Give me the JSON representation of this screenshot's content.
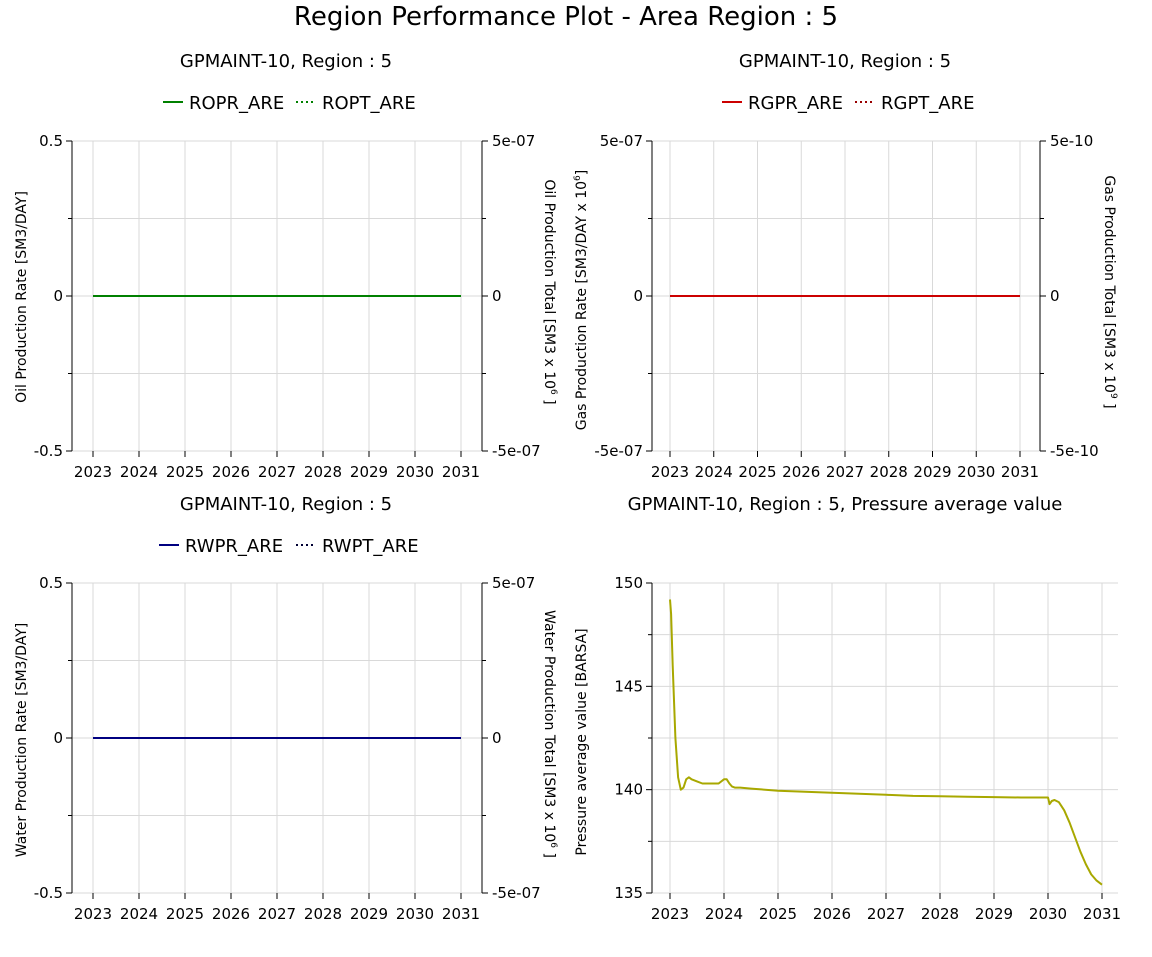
{
  "title": "Region Performance Plot - Area Region : 5",
  "x_tick_labels": [
    "2023",
    "2024",
    "2025",
    "2026",
    "2027",
    "2028",
    "2029",
    "2030",
    "2031"
  ],
  "chart_data": [
    {
      "id": "oil",
      "type": "line",
      "title": "GPMAINT-10, Region : 5",
      "ylabel": "Oil Production Rate [SM3/DAY]",
      "y2label": "Oil Production Total [SM3 x 10",
      "y2label_exp": "6",
      "y2label_end": " ]",
      "ylim": [
        -0.5,
        0.5
      ],
      "y_ticks": [
        "0.5",
        "0",
        "-0.5"
      ],
      "y2lim": [
        -5e-07,
        5e-07
      ],
      "y2_ticks": [
        "5e-07",
        "0",
        "-5e-07"
      ],
      "xlim": [
        2023,
        2031
      ],
      "grid": true,
      "legend_position": "top",
      "series": [
        {
          "name": "ROPR_ARE",
          "color": "#008000",
          "style": "solid",
          "axis": "left",
          "x": [
            2023,
            2031
          ],
          "y": [
            0,
            0
          ]
        },
        {
          "name": "ROPT_ARE",
          "color": "#008000",
          "style": "dotted",
          "axis": "right",
          "x": [
            2023,
            2031
          ],
          "y": [
            0,
            0
          ]
        }
      ]
    },
    {
      "id": "gas",
      "type": "line",
      "title": "GPMAINT-10, Region : 5",
      "ylabel": "Gas Production Rate [SM3/DAY x 10",
      "ylabel_exp": "6",
      "ylabel_end": "]",
      "y2label": "Gas Production Total [SM3 x 10",
      "y2label_exp": "9",
      "y2label_end": " ]",
      "ylim": [
        -5e-07,
        5e-07
      ],
      "y_ticks": [
        "5e-07",
        "0",
        "-5e-07"
      ],
      "y2lim": [
        -5e-10,
        5e-10
      ],
      "y2_ticks": [
        "5e-10",
        "0",
        "-5e-10"
      ],
      "xlim": [
        2023,
        2031
      ],
      "grid": true,
      "legend_position": "top",
      "series": [
        {
          "name": "RGPR_ARE",
          "color": "#cc0000",
          "style": "solid",
          "axis": "left",
          "x": [
            2023,
            2031
          ],
          "y": [
            0,
            0
          ]
        },
        {
          "name": "RGPT_ARE",
          "color": "#990000",
          "style": "dotted",
          "axis": "right",
          "x": [
            2023,
            2031
          ],
          "y": [
            0,
            0
          ]
        }
      ]
    },
    {
      "id": "water",
      "type": "line",
      "title": "GPMAINT-10, Region : 5",
      "ylabel": "Water Production Rate [SM3/DAY]",
      "y2label": "Water Production Total [SM3 x 10",
      "y2label_exp": "6",
      "y2label_end": " ]",
      "ylim": [
        -0.5,
        0.5
      ],
      "y_ticks": [
        "0.5",
        "0",
        "-0.5"
      ],
      "y2lim": [
        -5e-07,
        5e-07
      ],
      "y2_ticks": [
        "5e-07",
        "0",
        "-5e-07"
      ],
      "xlim": [
        2023,
        2031
      ],
      "grid": true,
      "legend_position": "top",
      "series": [
        {
          "name": "RWPR_ARE",
          "color": "#000080",
          "style": "solid",
          "axis": "left",
          "x": [
            2023,
            2031
          ],
          "y": [
            0,
            0
          ]
        },
        {
          "name": "RWPT_ARE",
          "color": "#000033",
          "style": "dotted",
          "axis": "right",
          "x": [
            2023,
            2031
          ],
          "y": [
            0,
            0
          ]
        }
      ]
    },
    {
      "id": "pressure",
      "type": "line",
      "title": "GPMAINT-10, Region : 5, Pressure average value",
      "ylabel": "Pressure average value [BARSA]",
      "ylim": [
        135,
        150
      ],
      "y_ticks": [
        "150",
        "145",
        "140",
        "135"
      ],
      "xlim": [
        2023,
        2031
      ],
      "grid": true,
      "series": [
        {
          "color": "#a8a800",
          "style": "solid",
          "axis": "left",
          "x": [
            2023.0,
            2023.02,
            2023.05,
            2023.1,
            2023.15,
            2023.2,
            2023.25,
            2023.3,
            2023.35,
            2023.4,
            2023.5,
            2023.6,
            2023.7,
            2023.8,
            2023.9,
            2024.0,
            2024.05,
            2024.1,
            2024.15,
            2024.2,
            2024.3,
            2024.5,
            2025.0,
            2025.5,
            2026.0,
            2026.5,
            2027.0,
            2027.5,
            2028.0,
            2028.5,
            2029.0,
            2029.5,
            2030.0,
            2030.03,
            2030.07,
            2030.12,
            2030.2,
            2030.3,
            2030.4,
            2030.5,
            2030.6,
            2030.7,
            2030.8,
            2030.9,
            2031.0
          ],
          "y": [
            149.2,
            148.5,
            146.0,
            142.5,
            140.6,
            140.0,
            140.1,
            140.5,
            140.6,
            140.5,
            140.4,
            140.3,
            140.3,
            140.3,
            140.3,
            140.5,
            140.5,
            140.3,
            140.15,
            140.1,
            140.1,
            140.05,
            139.95,
            139.9,
            139.85,
            139.8,
            139.75,
            139.7,
            139.68,
            139.66,
            139.64,
            139.62,
            139.62,
            139.3,
            139.45,
            139.5,
            139.4,
            139.0,
            138.4,
            137.7,
            137.0,
            136.4,
            135.9,
            135.6,
            135.4
          ]
        }
      ]
    }
  ]
}
